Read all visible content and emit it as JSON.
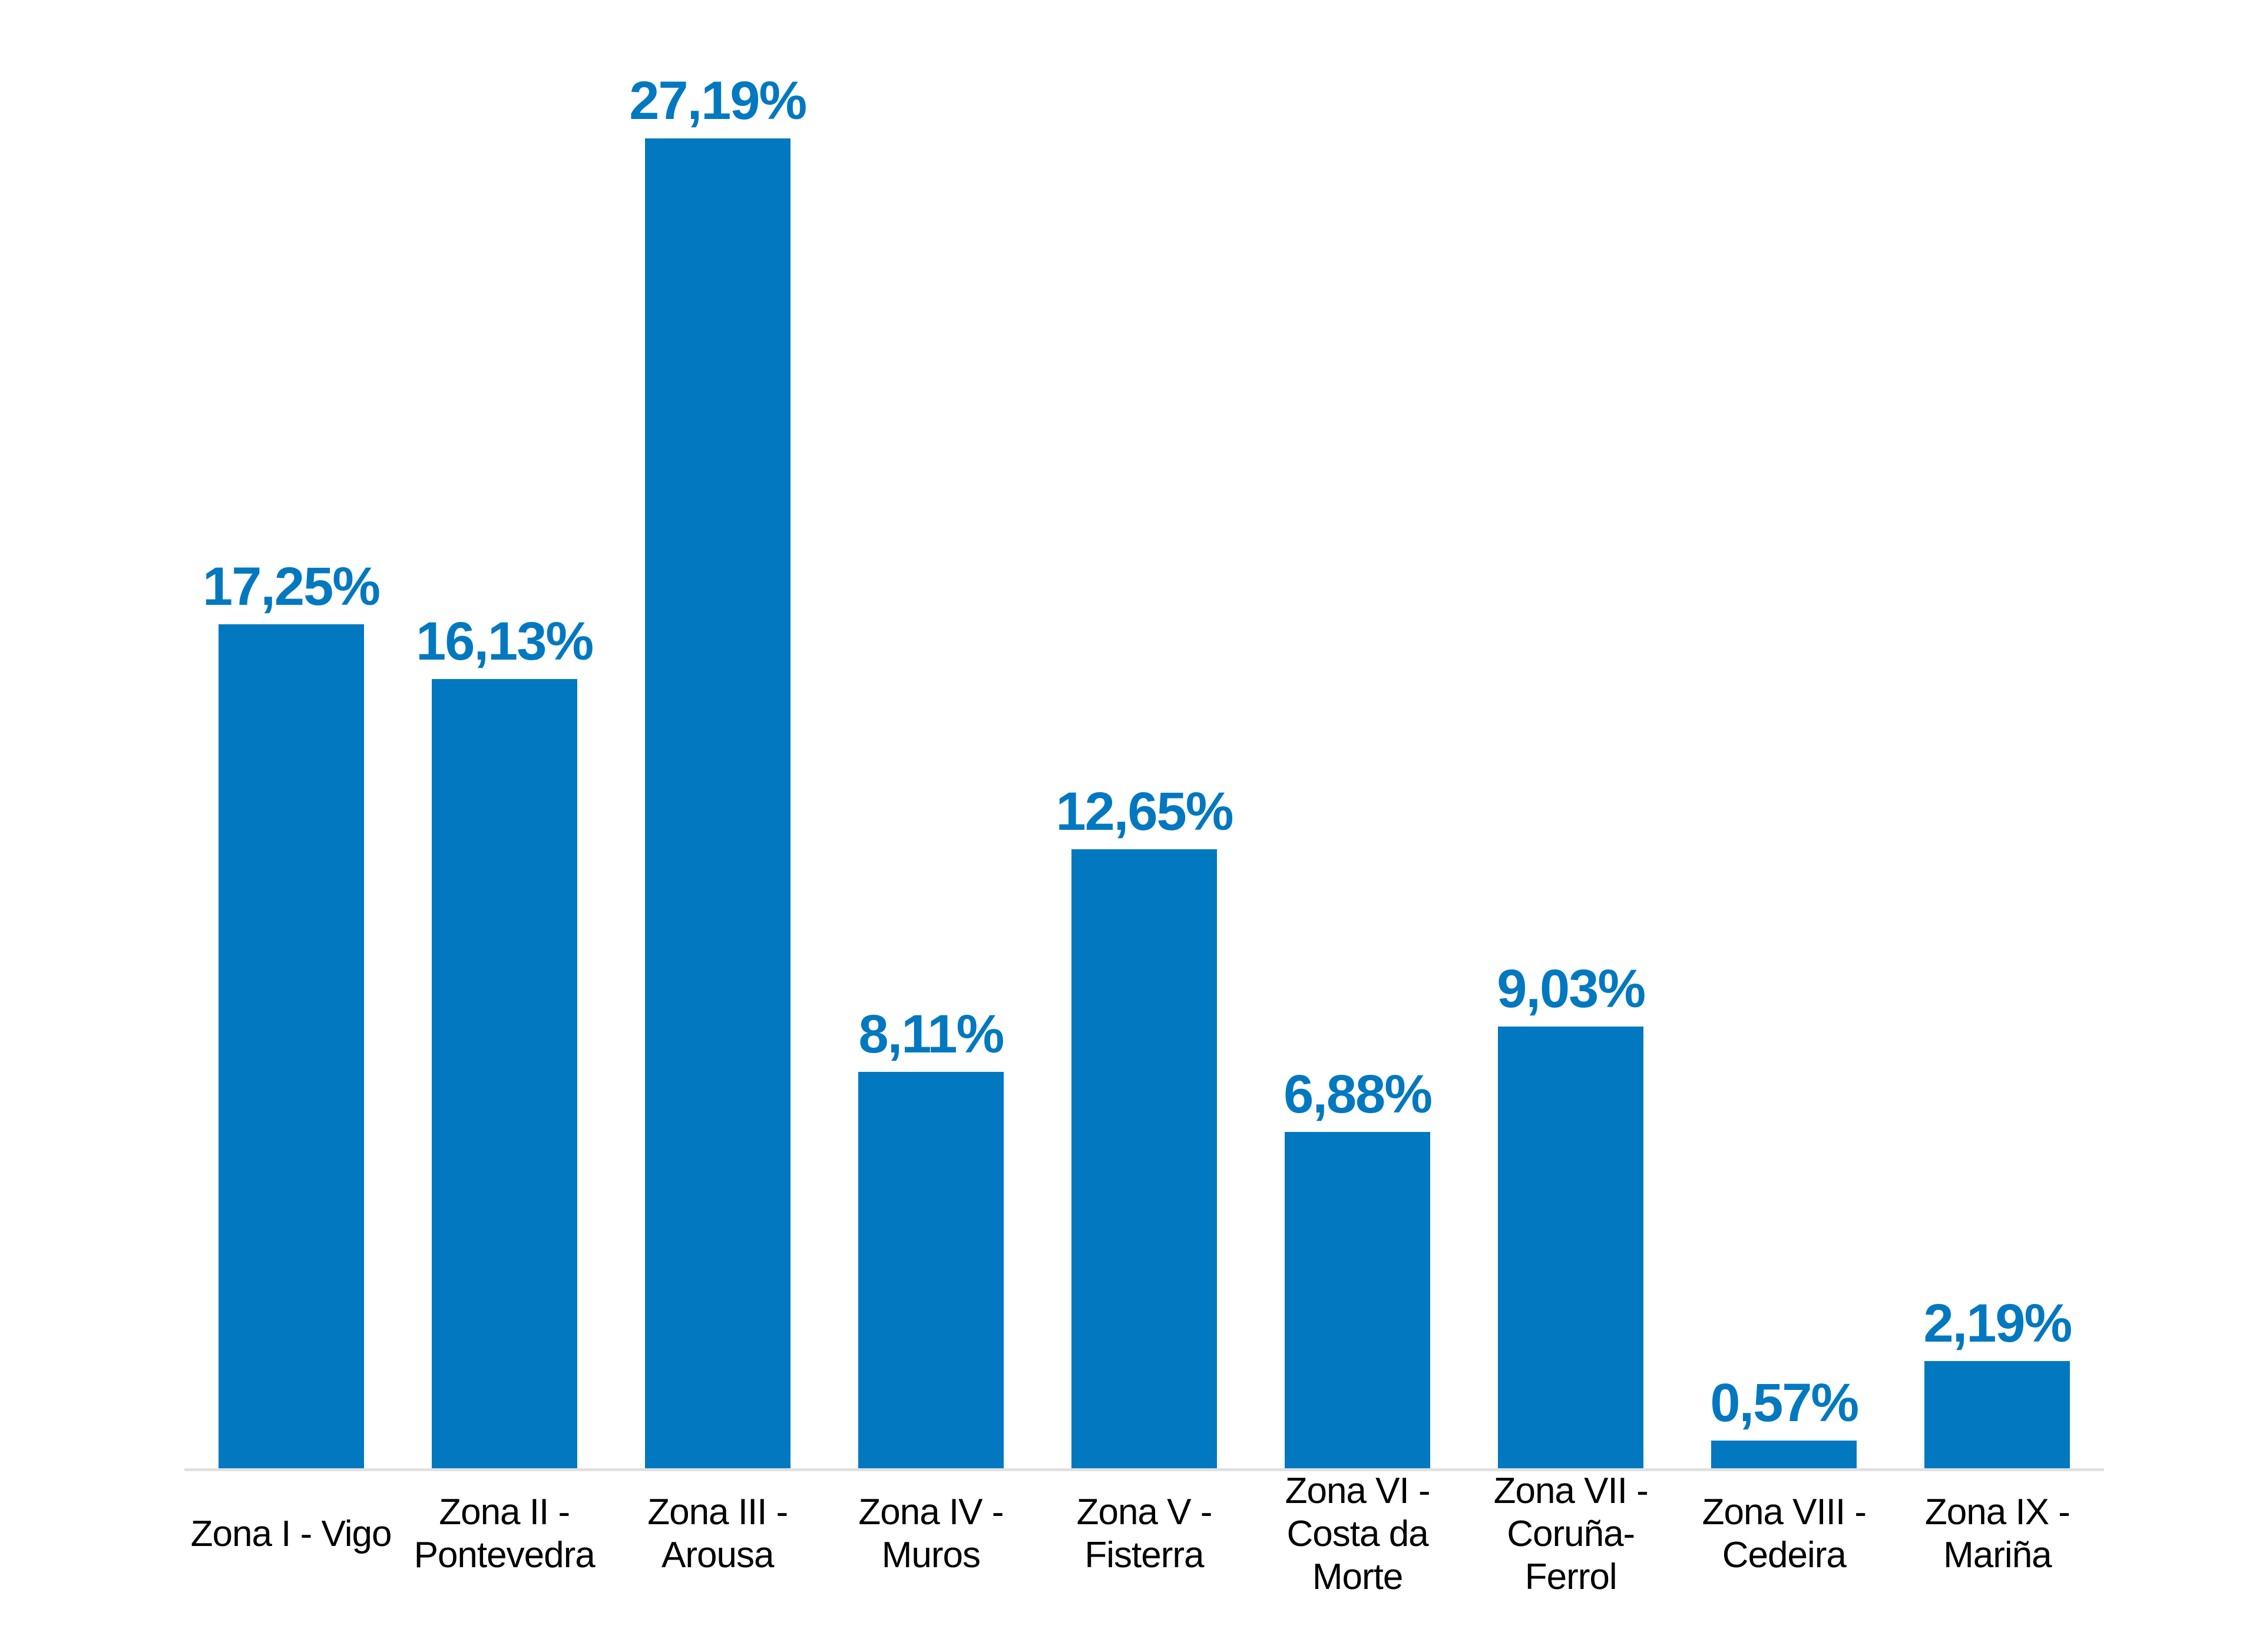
{
  "chart_data": {
    "type": "bar",
    "title": "",
    "xlabel": "",
    "ylabel": "",
    "ylim": [
      0,
      30
    ],
    "grid": false,
    "legend": false,
    "categories": [
      "Zona I - Vigo",
      "Zona II - Pontevedra",
      "Zona III - Arousa",
      "Zona IV - Muros",
      "Zona V - Fisterra",
      "Zona VI - Costa da Morte",
      "Zona VII - Coruña-Ferrol",
      "Zona VIII - Cedeira",
      "Zona IX - Mariña"
    ],
    "category_lines": [
      [
        "Zona I - Vigo"
      ],
      [
        "Zona II -",
        "Pontevedra"
      ],
      [
        "Zona III -",
        "Arousa"
      ],
      [
        "Zona IV -",
        "Muros"
      ],
      [
        "Zona V -",
        "Fisterra"
      ],
      [
        "Zona VI -",
        "Costa da",
        "Morte"
      ],
      [
        "Zona VII -",
        "Coruña-",
        "Ferrol"
      ],
      [
        "Zona VIII -",
        "Cedeira"
      ],
      [
        "Zona IX -",
        "Mariña"
      ]
    ],
    "values": [
      17.25,
      16.13,
      27.19,
      8.11,
      12.65,
      6.88,
      9.03,
      0.57,
      2.19
    ],
    "value_labels": [
      "17,25%",
      "16,13%",
      "27,19%",
      "8,11%",
      "12,65%",
      "6,88%",
      "9,03%",
      "0,57%",
      "2,19%"
    ],
    "bar_color": "#0278C0",
    "value_label_color": "#0278C0",
    "tick_label_color": "#000000",
    "axis_line_color": "#E1E1E1"
  }
}
